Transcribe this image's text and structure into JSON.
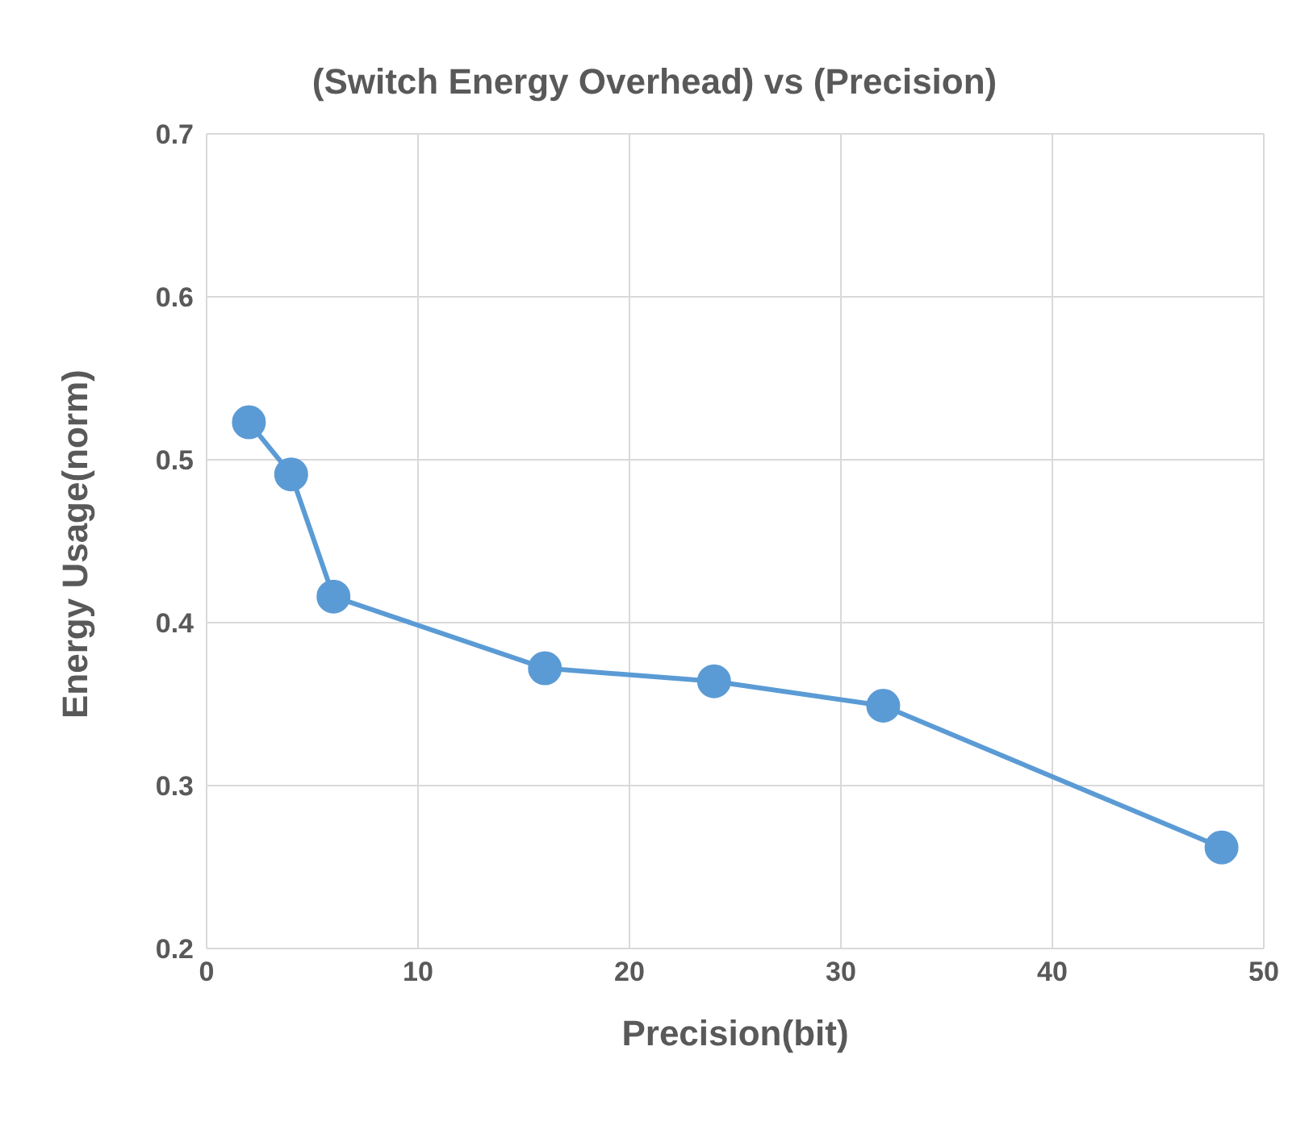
{
  "chart_data": {
    "type": "line",
    "title": "(Switch Energy Overhead) vs (Precision)",
    "xlabel": "Precision(bit)",
    "ylabel": "Energy Usage(norm)",
    "x": [
      2,
      4,
      6,
      16,
      24,
      32,
      48
    ],
    "series": [
      {
        "color": "#5b9bd5",
        "values": [
          0.523,
          0.491,
          0.416,
          0.372,
          0.364,
          0.349,
          0.262
        ]
      }
    ],
    "xlim": [
      0,
      50
    ],
    "xticks": [
      0,
      10,
      20,
      30,
      40,
      50
    ],
    "ylim": [
      0.2,
      0.7
    ],
    "yticks": [
      0.2,
      0.3,
      0.4,
      0.5,
      0.6,
      0.7
    ],
    "grid": true,
    "marker": "circle",
    "line_style": "solid"
  }
}
